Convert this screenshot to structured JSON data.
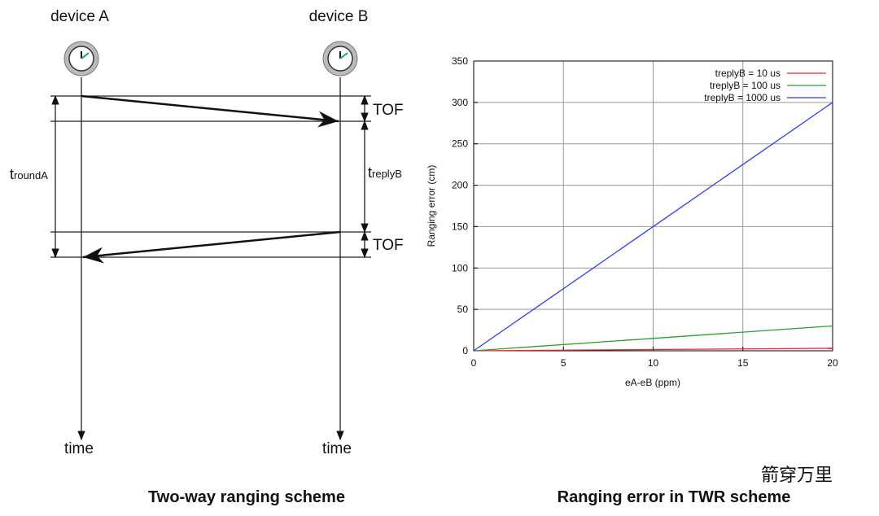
{
  "diagram": {
    "device_a": "device A",
    "device_b": "device B",
    "time_a": "time",
    "time_b": "time",
    "t_round": {
      "main": "t",
      "sub": "roundA"
    },
    "t_reply": {
      "main": "t",
      "sub": "replyB"
    },
    "tof_1": "TOF",
    "tof_2": "TOF",
    "caption": "Two-way ranging scheme",
    "watermark": "箭穿万里"
  },
  "chart_data": {
    "type": "line",
    "title": "Ranging error in TWR scheme",
    "x_label": "eA-eB (ppm)",
    "y_label": "Ranging error (cm)",
    "x": [
      0,
      20
    ],
    "series": [
      {
        "name": "treplyB = 10 us",
        "color": "#e8262a",
        "values": [
          0,
          3
        ]
      },
      {
        "name": "treplyB = 100 us",
        "color": "#2ca02c",
        "values": [
          0,
          30
        ]
      },
      {
        "name": "treplyB = 1000 us",
        "color": "#2b3bf0",
        "values": [
          0,
          300
        ]
      }
    ],
    "xlim": [
      0,
      20
    ],
    "xticks": [
      0,
      5,
      10,
      15,
      20
    ],
    "ylim": [
      0,
      350
    ],
    "yticks": [
      0,
      50,
      100,
      150,
      200,
      250,
      300,
      350
    ],
    "grid": true,
    "legend": "top-right"
  }
}
